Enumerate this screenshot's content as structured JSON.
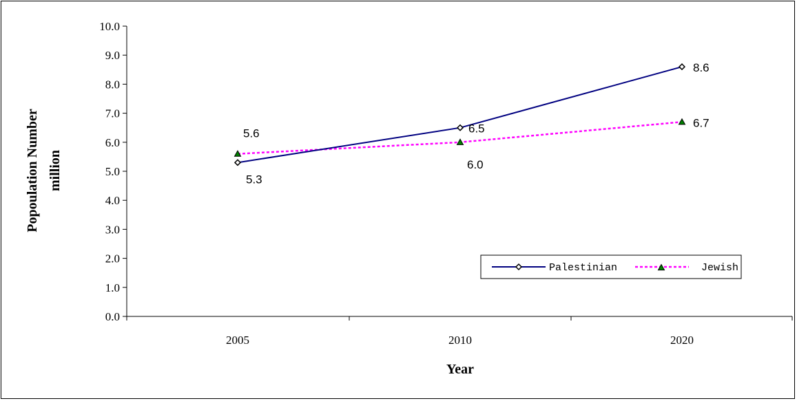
{
  "chart_data": {
    "type": "line",
    "categories": [
      "2005",
      "2010",
      "2020"
    ],
    "xlabel": "Year",
    "ylabel_lines": [
      "Popoulation Number",
      "million"
    ],
    "ylim": [
      0,
      10
    ],
    "ytick_step": 1,
    "ytick_labels": [
      "0.0",
      "1.0",
      "2.0",
      "3.0",
      "4.0",
      "5.0",
      "6.0",
      "7.0",
      "8.0",
      "9.0",
      "10.0"
    ],
    "grid": false,
    "legend_position": "bottom-right",
    "series": [
      {
        "name": "Palestinian",
        "values": [
          5.3,
          6.5,
          8.6
        ],
        "data_labels": [
          "5.3",
          "6.5",
          "8.6"
        ],
        "color": "#000080",
        "line_style": "solid",
        "marker": "diamond"
      },
      {
        "name": "Jewish",
        "values": [
          5.6,
          6.0,
          6.7
        ],
        "data_labels": [
          "5.6",
          "6.0",
          "6.7"
        ],
        "color": "#ff00ff",
        "line_style": "dotted",
        "marker": "triangle",
        "marker_color": "#008000"
      }
    ]
  }
}
